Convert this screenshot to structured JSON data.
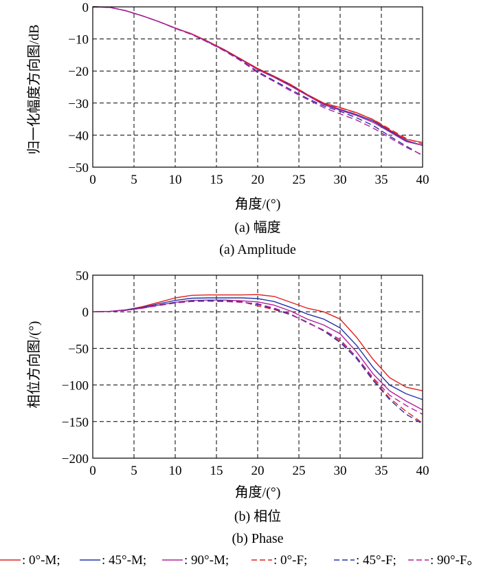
{
  "chart_data": [
    {
      "id": "amplitude",
      "type": "line",
      "xlabel": "角度/(°)",
      "ylabel": "归一化幅度方向图/dB",
      "xlim": [
        0,
        40
      ],
      "ylim": [
        -50,
        0
      ],
      "xticks": [
        0,
        5,
        10,
        15,
        20,
        25,
        30,
        35,
        40
      ],
      "yticks": [
        0,
        -10,
        -20,
        -30,
        -40,
        -50
      ],
      "grid": "dashed",
      "caption_cn": "(a) 幅度",
      "caption_en": "(a) Amplitude",
      "x": [
        0,
        2,
        4,
        6,
        8,
        10,
        12,
        14,
        16,
        18,
        20,
        22,
        24,
        26,
        28,
        30,
        32,
        34,
        36,
        38,
        40
      ],
      "series": [
        {
          "key": "0M",
          "color": "#e0201e",
          "dash": "solid",
          "values": [
            0,
            -0.1,
            -1.2,
            -2.8,
            -4.6,
            -6.6,
            -8.4,
            -10.8,
            -13.4,
            -16.3,
            -19.2,
            -21.6,
            -24.2,
            -27.3,
            -30.0,
            -31.4,
            -33.0,
            -35.2,
            -38.4,
            -41.3,
            -42.3
          ]
        },
        {
          "key": "45M",
          "color": "#2233a8",
          "dash": "solid",
          "values": [
            0,
            -0.1,
            -1.2,
            -2.8,
            -4.6,
            -6.6,
            -8.5,
            -11.0,
            -13.6,
            -16.5,
            -19.4,
            -21.8,
            -24.4,
            -27.4,
            -30.3,
            -32.0,
            -33.6,
            -35.6,
            -38.7,
            -41.7,
            -43.2
          ]
        },
        {
          "key": "90M",
          "color": "#b0209a",
          "dash": "solid",
          "values": [
            0,
            -0.1,
            -1.2,
            -2.8,
            -4.6,
            -6.6,
            -8.5,
            -10.9,
            -13.5,
            -16.4,
            -19.6,
            -22.0,
            -24.7,
            -27.6,
            -30.5,
            -32.2,
            -33.9,
            -36.0,
            -39.0,
            -42.0,
            -43.2
          ]
        },
        {
          "key": "0F",
          "color": "#e0201e",
          "dash": "dashed",
          "values": [
            0,
            -0.1,
            -1.2,
            -2.8,
            -4.6,
            -6.6,
            -8.4,
            -10.9,
            -13.5,
            -16.3,
            -19.3,
            -21.7,
            -24.3,
            -27.4,
            -30.1,
            -31.5,
            -33.1,
            -35.1,
            -38.1,
            -41.0,
            -42.8
          ]
        },
        {
          "key": "45F",
          "color": "#2233a8",
          "dash": "dashed",
          "values": [
            0,
            -0.1,
            -1.2,
            -2.8,
            -4.6,
            -6.7,
            -8.6,
            -11.1,
            -13.7,
            -16.7,
            -20.2,
            -23.0,
            -25.8,
            -28.5,
            -30.9,
            -32.6,
            -34.6,
            -37.0,
            -40.3,
            -43.4,
            -46.4
          ]
        },
        {
          "key": "90F",
          "color": "#b0209a",
          "dash": "dashed",
          "values": [
            0,
            -0.1,
            -1.2,
            -2.8,
            -4.6,
            -6.7,
            -8.6,
            -11.0,
            -13.8,
            -16.9,
            -20.5,
            -23.3,
            -26.2,
            -28.8,
            -31.4,
            -33.4,
            -35.3,
            -37.8,
            -40.8,
            -43.8,
            -46.2
          ]
        }
      ]
    },
    {
      "id": "phase",
      "type": "line",
      "xlabel": "角度/(°)",
      "ylabel": "相位方向图/(°)",
      "xlim": [
        0,
        40
      ],
      "ylim": [
        -200,
        50
      ],
      "xticks": [
        0,
        5,
        10,
        15,
        20,
        25,
        30,
        35,
        40
      ],
      "yticks": [
        50,
        0,
        -50,
        -100,
        -150,
        -200
      ],
      "grid": "dashed",
      "caption_cn": "(b) 相位",
      "caption_en": "(b) Phase",
      "x": [
        0,
        2,
        4,
        6,
        8,
        10,
        12,
        14,
        16,
        18,
        20,
        22,
        24,
        26,
        28,
        30,
        32,
        34,
        36,
        38,
        40
      ],
      "series": [
        {
          "key": "0M",
          "color": "#e0201e",
          "dash": "solid",
          "values": [
            0,
            0.5,
            2.5,
            7,
            13,
            19,
            22.5,
            23,
            23,
            23,
            23.5,
            21,
            13,
            5,
            0,
            -10,
            -35,
            -65,
            -90,
            -103,
            -108
          ]
        },
        {
          "key": "45M",
          "color": "#2233a8",
          "dash": "solid",
          "values": [
            0,
            0.5,
            2.5,
            6,
            11,
            15.5,
            18.5,
            19,
            19,
            19,
            18,
            14,
            6,
            -3,
            -10,
            -22,
            -46,
            -76,
            -100,
            -112,
            -120
          ]
        },
        {
          "key": "90M",
          "color": "#b0209a",
          "dash": "solid",
          "values": [
            0,
            0.5,
            2,
            5,
            9,
            13,
            15.5,
            16,
            16,
            15,
            13.5,
            9,
            1,
            -10,
            -18,
            -30,
            -55,
            -85,
            -108,
            -122,
            -134
          ]
        },
        {
          "key": "0F",
          "color": "#e0201e",
          "dash": "dashed",
          "values": [
            0,
            0.5,
            2,
            5,
            9.5,
            13,
            15,
            15.5,
            15,
            14,
            8,
            3,
            -4,
            -14,
            -26,
            -40,
            -62,
            -92,
            -118,
            -136,
            -152
          ]
        },
        {
          "key": "45F",
          "color": "#2233a8",
          "dash": "dashed",
          "values": [
            0,
            0.5,
            2,
            5,
            9,
            13,
            15,
            15.5,
            15,
            13.5,
            10,
            4,
            -4,
            -14,
            -26,
            -42,
            -64,
            -94,
            -120,
            -140,
            -153
          ]
        },
        {
          "key": "90F",
          "color": "#b0209a",
          "dash": "dashed",
          "values": [
            0,
            0.5,
            2,
            5,
            8.5,
            12,
            14,
            14.5,
            14,
            13,
            11,
            5,
            -3,
            -15,
            -25,
            -38,
            -62,
            -90,
            -114,
            -128,
            -140
          ]
        }
      ]
    }
  ],
  "legend": {
    "entries": [
      {
        "key": "0M",
        "label": ": 0°-M;",
        "color": "#e0201e",
        "dash": "solid"
      },
      {
        "key": "45M",
        "label": ": 45°-M;",
        "color": "#2233a8",
        "dash": "solid"
      },
      {
        "key": "90M",
        "label": ": 90°-M;",
        "color": "#b0209a",
        "dash": "solid"
      },
      {
        "key": "0F",
        "label": ": 0°-F;",
        "color": "#e0201e",
        "dash": "dashed"
      },
      {
        "key": "45F",
        "label": ": 45°-F;",
        "color": "#2233a8",
        "dash": "dashed"
      },
      {
        "key": "90F",
        "label": ": 90°-F。",
        "color": "#b0209a",
        "dash": "dashed"
      }
    ]
  }
}
